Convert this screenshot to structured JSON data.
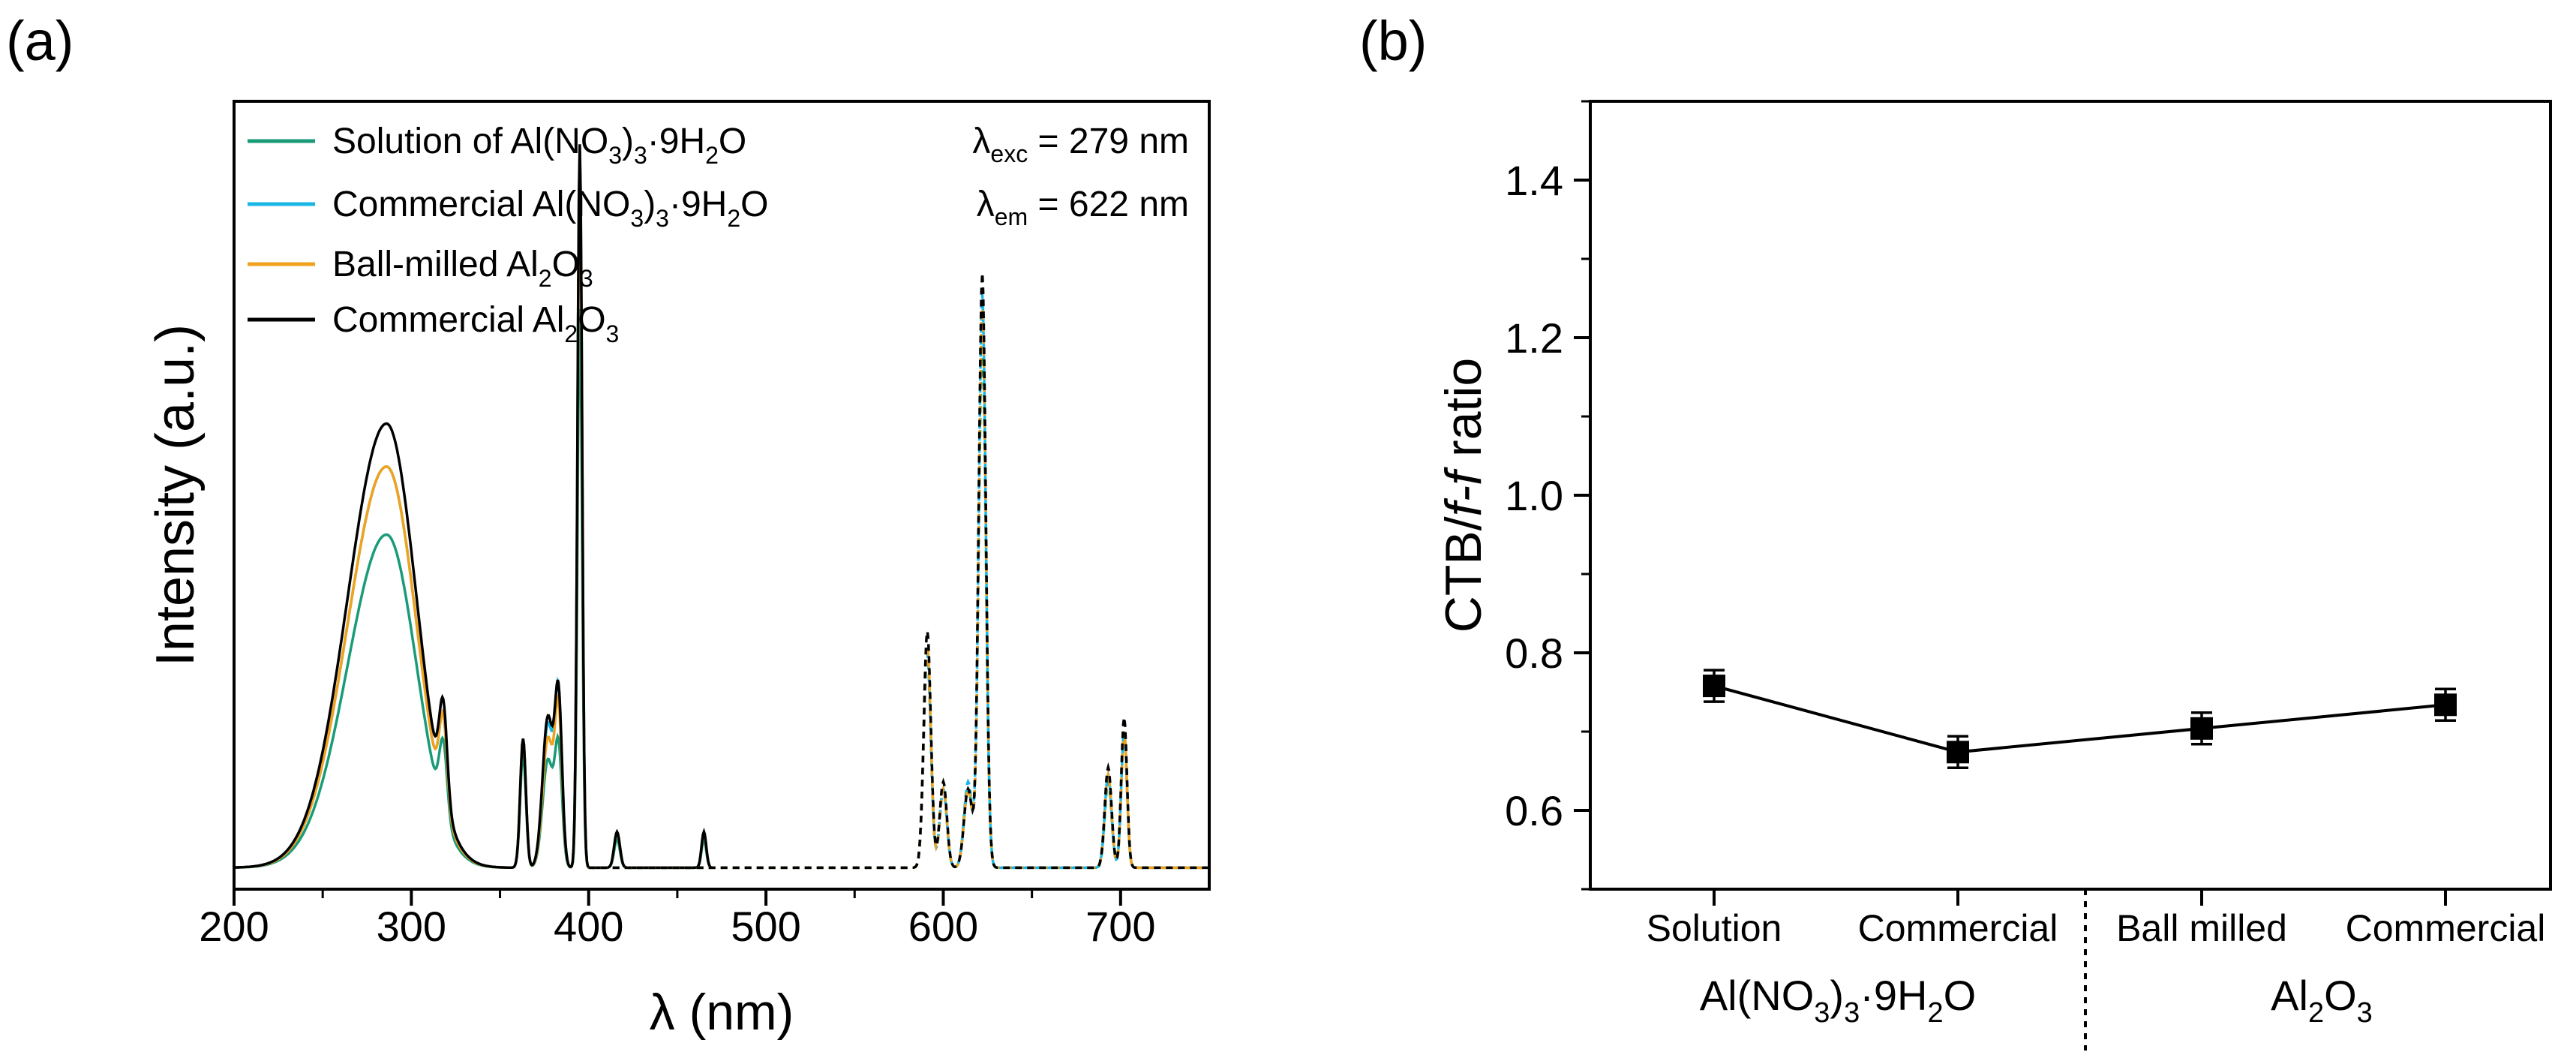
{
  "colors": {
    "solution": "#1a9b78",
    "commercial_nitrate": "#1ab7e6",
    "ball_milled": "#f0a21e",
    "commercial_oxide": "#000000",
    "axis": "#000000"
  },
  "panel_a": {
    "panel_label": "(a)",
    "xlabel": "λ (nm)",
    "ylabel": "Intensity (a.u.)",
    "ylabel_unit": "",
    "annotations": {
      "exc_prefix": "λ",
      "exc_sub": "exc",
      "exc_value": " = 279 nm",
      "em_prefix": "λ",
      "em_sub": "em",
      "em_value": " = 622 nm"
    },
    "legend": [
      {
        "key": "solution",
        "t1": "Solution of Al(NO",
        "s1": "3",
        "t2": ")",
        "s2": "3",
        "t3": "·9H",
        "s3": "2",
        "t4": "O"
      },
      {
        "key": "commercial_nitrate",
        "t1": "Commercial Al(NO",
        "s1": "3",
        "t2": ")",
        "s2": "3",
        "t3": "·9H",
        "s3": "2",
        "t4": "O"
      },
      {
        "key": "ball_milled",
        "t1": "Ball-milled Al",
        "s1": "2",
        "t2": "O",
        "s2": "3",
        "t3": "",
        "s3": "",
        "t4": ""
      },
      {
        "key": "commercial_oxide",
        "t1": "Commercial Al",
        "s1": "2",
        "t2": "O",
        "s2": "3",
        "t3": "",
        "s3": "",
        "t4": ""
      }
    ]
  },
  "panel_b": {
    "panel_label": "(b)",
    "ylabel_pre": "CTB/",
    "ylabel_ital": "f-f",
    "ylabel_post": " ratio",
    "categories": [
      "Solution",
      "Commercial",
      "Ball milled",
      "Commercial"
    ],
    "group1": {
      "t1": "Al(NO",
      "s1": "3",
      "t2": ")",
      "s2": "3",
      "t3": "·9H",
      "s3": "2",
      "t4": "O"
    },
    "group2": {
      "t1": "Al",
      "s1": "2",
      "t2": "O",
      "s2": "3"
    }
  },
  "chart_data": [
    {
      "type": "line",
      "title": "(a)",
      "xlabel": "λ (nm)",
      "ylabel": "Intensity (a.u.)",
      "xlim": [
        200,
        750
      ],
      "xticks": [
        200,
        300,
        400,
        500,
        600,
        700
      ],
      "ylim": [
        0,
        1.1
      ],
      "excitation_range_solid": [
        200,
        470
      ],
      "emission_range_dashed": [
        400,
        750
      ],
      "baseline": 0.03,
      "series": [
        {
          "name": "Solution of Al(NO3)3·9H2O",
          "key": "solution",
          "broad_peak": {
            "center": 286,
            "height": 0.465
          },
          "excitation_peaks": {
            "318": 0.1,
            "363": 0.16,
            "377": 0.15,
            "383": 0.16,
            "395": 0.78,
            "416": 0.04,
            "465": 0.04
          },
          "emission_peaks": {
            "591": 0.3,
            "600": 0.11,
            "614": 0.11,
            "622": 0.74,
            "693": 0.12,
            "702": 0.19
          }
        },
        {
          "name": "Commercial Al(NO3)3·9H2O",
          "key": "commercial_nitrate",
          "broad_peak": {
            "center": 286,
            "height": 0.56
          },
          "excitation_peaks": {
            "318": 0.12,
            "363": 0.18,
            "377": 0.2,
            "383": 0.23,
            "395": 1.0,
            "416": 0.05,
            "465": 0.05
          },
          "emission_peaks": {
            "591": 0.3,
            "600": 0.11,
            "614": 0.12,
            "622": 0.8,
            "693": 0.13,
            "702": 0.19
          }
        },
        {
          "name": "Ball-milled Al2O3",
          "key": "ball_milled",
          "broad_peak": {
            "center": 286,
            "height": 0.56
          },
          "excitation_peaks": {
            "318": 0.12,
            "363": 0.18,
            "377": 0.18,
            "383": 0.21,
            "395": 0.97,
            "416": 0.05,
            "465": 0.05
          },
          "emission_peaks": {
            "591": 0.31,
            "600": 0.11,
            "614": 0.11,
            "622": 0.78,
            "693": 0.13,
            "702": 0.19
          }
        },
        {
          "name": "Commercial Al2O3",
          "key": "commercial_oxide",
          "broad_peak": {
            "center": 286,
            "height": 0.62
          },
          "excitation_peaks": {
            "318": 0.13,
            "363": 0.18,
            "377": 0.21,
            "383": 0.23,
            "395": 1.01,
            "416": 0.05,
            "465": 0.05
          },
          "emission_peaks": {
            "591": 0.33,
            "600": 0.12,
            "614": 0.11,
            "622": 0.83,
            "693": 0.14,
            "702": 0.21
          }
        }
      ]
    },
    {
      "type": "line",
      "title": "(b)",
      "xlabel": "",
      "ylabel": "CTB/f-f ratio",
      "categories": [
        "Solution",
        "Commercial",
        "Ball milled",
        "Commercial"
      ],
      "groups": [
        {
          "name": "Al(NO3)3·9H2O",
          "categories": [
            "Solution",
            "Commercial"
          ]
        },
        {
          "name": "Al2O3",
          "categories": [
            "Ball milled",
            "Commercial"
          ]
        }
      ],
      "values": [
        0.758,
        0.674,
        0.704,
        0.734
      ],
      "errors": [
        0.02,
        0.02,
        0.02,
        0.02
      ],
      "ylim": [
        0.5,
        1.5
      ],
      "yticks": [
        0.6,
        0.8,
        1.0,
        1.2,
        1.4
      ],
      "marker": "square"
    }
  ]
}
